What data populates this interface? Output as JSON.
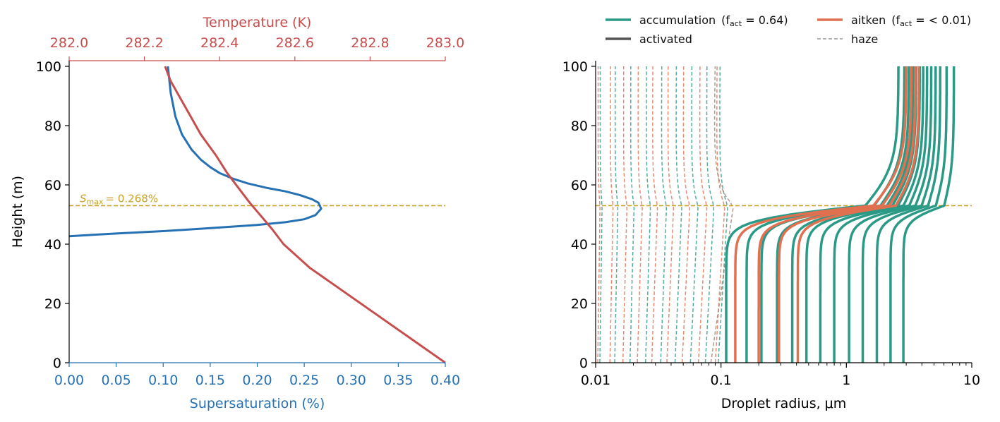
{
  "chart_data": [
    {
      "type": "line",
      "ylabel": "Height (m)",
      "ylim": [
        0,
        100
      ],
      "yticks": [
        0,
        20,
        40,
        60,
        80,
        100
      ],
      "bottom_axis": {
        "label": "Supersaturation (%)",
        "lim": [
          0.0,
          0.4
        ],
        "ticks": [
          "0.00",
          "0.05",
          "0.10",
          "0.15",
          "0.20",
          "0.25",
          "0.30",
          "0.35",
          "0.40"
        ],
        "color": "#2671b4"
      },
      "top_axis": {
        "label": "Temperature (K)",
        "lim": [
          282.0,
          283.0
        ],
        "ticks": [
          "282.0",
          "282.2",
          "282.4",
          "282.6",
          "282.8",
          "283.0"
        ],
        "color": "#c64e4e"
      },
      "series": [
        {
          "axis": "bottom",
          "color": "#2671b4",
          "x": [
            0.0,
            0.05,
            0.1,
            0.15,
            0.2,
            0.23,
            0.25,
            0.262,
            0.268,
            0.265,
            0.258,
            0.245,
            0.23,
            0.21,
            0.19,
            0.175,
            0.16,
            0.15,
            0.14,
            0.13,
            0.12,
            0.113,
            0.108,
            0.105
          ],
          "y": [
            42.7,
            43.6,
            44.4,
            45.4,
            46.5,
            47.4,
            48.4,
            49.8,
            52.0,
            54.0,
            55.2,
            56.6,
            57.8,
            59.0,
            60.5,
            62.0,
            64.0,
            66.0,
            68.5,
            72.0,
            77.0,
            83.0,
            91.0,
            100.0
          ]
        },
        {
          "axis": "top",
          "color": "#c64e4e",
          "x": [
            283.0,
            282.91,
            282.82,
            282.73,
            282.64,
            282.57,
            282.54,
            282.52,
            282.5,
            282.48,
            282.45,
            282.42,
            282.39,
            282.35,
            282.31,
            282.27,
            282.255
          ],
          "y": [
            0.0,
            8.0,
            16.0,
            24.0,
            32.0,
            40.0,
            45.0,
            48.0,
            51.0,
            54.0,
            59.0,
            64.0,
            70.0,
            77.0,
            86.0,
            95.0,
            100.0
          ]
        }
      ],
      "annotation": {
        "text_main": "S",
        "text_sub": "max",
        "text_rest": "= 0.268%",
        "y": 53.0,
        "color": "#c9a227"
      }
    },
    {
      "type": "line",
      "xlabel": "Droplet radius, μm",
      "xscale": "log",
      "xlim": [
        0.01,
        10
      ],
      "xticks": [
        "0.01",
        "0.1",
        "1",
        "10"
      ],
      "ylim": [
        0,
        100
      ],
      "yticks": [
        0,
        20,
        40,
        60,
        80,
        100
      ],
      "hline_y": 53.0,
      "hline_color": "#c9a227",
      "legend": [
        {
          "label": "accumulation",
          "fact": "(f",
          "fact_sub": "act",
          "fact_rest": " = 0.64)",
          "color": "#2a9a87",
          "style": "solid"
        },
        {
          "label": "aitken",
          "fact": "(f",
          "fact_sub": "act",
          "fact_rest": " = < 0.01)",
          "color": "#e07050",
          "style": "solid"
        },
        {
          "label": "activated",
          "color": "#555555",
          "style": "solid"
        },
        {
          "label": "haze",
          "color": "#999999",
          "style": "dashed"
        }
      ],
      "activated": {
        "accumulation": {
          "color": "#2a9a87",
          "r0": [
            0.11,
            0.16,
            0.21,
            0.28,
            0.37,
            0.48,
            0.62,
            0.8,
            1.05,
            1.35,
            1.75,
            2.25,
            2.85
          ],
          "r100": [
            2.6,
            2.9,
            3.15,
            3.4,
            3.6,
            3.85,
            4.1,
            4.4,
            4.75,
            5.15,
            5.6,
            6.3,
            7.2
          ]
        },
        "aitken": {
          "color": "#e07050",
          "r0": [
            0.13,
            0.2,
            0.29,
            0.41
          ],
          "r100": [
            3.0,
            3.3,
            3.55,
            3.8
          ]
        }
      },
      "haze": {
        "accumulation": {
          "color": "#2a9a87",
          "r": [
            0.0108,
            0.0142,
            0.0188,
            0.025,
            0.033,
            0.043,
            0.057,
            0.075,
            0.095
          ]
        },
        "aitken": {
          "color": "#e07050",
          "r": [
            0.0104,
            0.013,
            0.0165,
            0.0215,
            0.028,
            0.037,
            0.049,
            0.066,
            0.09
          ]
        },
        "largest": {
          "color": "#a27e72",
          "r": [
            0.083
          ]
        }
      }
    }
  ]
}
